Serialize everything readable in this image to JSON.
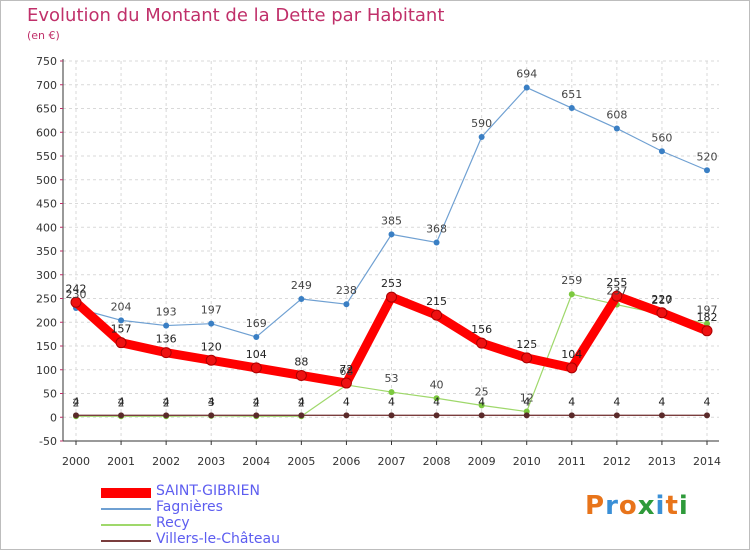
{
  "title": "Evolution du Montant de la Dette par Habitant",
  "unit": "(en €)",
  "logo": {
    "text": "Proxiti",
    "colors": [
      "#e8741a",
      "#3a8fd6",
      "#e8741a",
      "#2e9a3a",
      "#3a8fd6",
      "#e8741a",
      "#2e9a3a"
    ]
  },
  "chart_data": {
    "type": "line",
    "x": [
      "2000",
      "2001",
      "2002",
      "2003",
      "2004",
      "2005",
      "2006",
      "2007",
      "2008",
      "2009",
      "2010",
      "2011",
      "2012",
      "2013",
      "2014"
    ],
    "ylim": [
      -50,
      750
    ],
    "yticks": [
      -50,
      0,
      50,
      100,
      150,
      200,
      250,
      300,
      350,
      400,
      450,
      500,
      550,
      600,
      650,
      700,
      750
    ],
    "grid": true,
    "legend_position": "bottom-left",
    "series": [
      {
        "name": "SAINT-GIBRIEN",
        "color": "#ff0000",
        "values": [
          242,
          157,
          136,
          120,
          104,
          88,
          72,
          253,
          215,
          156,
          125,
          104,
          255,
          220,
          182
        ],
        "labels": [
          "242",
          "157",
          "136",
          "120",
          "104",
          "88",
          "72",
          "253",
          "215",
          "156",
          "125",
          "104",
          "255",
          "220",
          "182"
        ]
      },
      {
        "name": "Fagnières",
        "color": "#6fa0d2",
        "values": [
          230,
          204,
          193,
          197,
          169,
          249,
          238,
          385,
          368,
          590,
          694,
          651,
          608,
          560,
          520
        ],
        "labels": [
          "230",
          "204",
          "193",
          "197",
          "169",
          "249",
          "238",
          "385",
          "368",
          "590",
          "694",
          "651",
          "608",
          "560",
          "520"
        ]
      },
      {
        "name": "Recy",
        "color": "#9fd86b",
        "values": [
          2,
          2,
          2,
          3,
          2,
          2,
          68,
          53,
          40,
          25,
          12,
          259,
          237,
          217,
          197
        ],
        "labels": [
          "2",
          "2",
          "2",
          "3",
          "2",
          "2",
          "68",
          "53",
          "40",
          "25",
          "12",
          "259",
          "237",
          "217",
          "197"
        ]
      },
      {
        "name": "Villers-le-Château",
        "color": "#7a3d3d",
        "values": [
          4,
          4,
          4,
          4,
          4,
          4,
          4,
          4,
          4,
          4,
          4,
          4,
          4,
          4,
          4
        ],
        "labels": [
          "4",
          "4",
          "4",
          "4",
          "4",
          "4",
          "4",
          "4",
          "4",
          "4",
          "4",
          "4",
          "4",
          "4",
          "4"
        ]
      }
    ]
  }
}
